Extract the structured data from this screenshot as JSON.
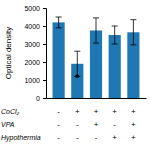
{
  "chart_data": {
    "type": "bar",
    "categories": [
      null,
      null,
      null,
      null,
      null
    ],
    "values": [
      4200,
      1900,
      3750,
      3500,
      3650
    ],
    "errors": [
      300,
      700,
      700,
      500,
      700
    ],
    "ylim": [
      0,
      5000
    ],
    "yticks": [
      0,
      1000,
      2000,
      3000,
      4000,
      5000
    ],
    "ylabel": "Optical density",
    "grid": false,
    "tick_labels": "y",
    "annotations": [
      {
        "text": "*",
        "x": 1,
        "y": 900
      }
    ],
    "table": {
      "row_labels": [
        "CoCl₂",
        "VPA",
        "Hypothermia"
      ],
      "cells": [
        [
          "-",
          "+",
          "+",
          "+",
          "+"
        ],
        [
          "-",
          "-",
          "+",
          "-",
          "+"
        ],
        [
          "-",
          "-",
          "-",
          "+",
          "+"
        ]
      ]
    }
  }
}
